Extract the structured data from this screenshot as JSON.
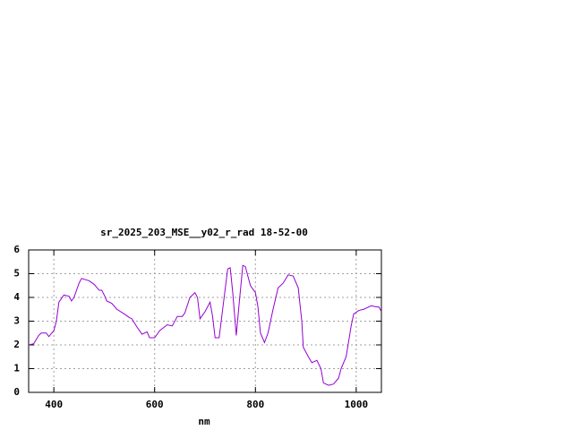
{
  "chart_data": {
    "type": "line",
    "title": "sr_2025_203_MSE__y02_r_rad 18-52-00",
    "x_label": "nm",
    "x": [
      350,
      360,
      370,
      375,
      385,
      390,
      400,
      405,
      410,
      420,
      430,
      435,
      440,
      450,
      455,
      470,
      480,
      490,
      495,
      500,
      505,
      515,
      525,
      540,
      550,
      555,
      565,
      575,
      585,
      590,
      600,
      610,
      625,
      635,
      645,
      655,
      660,
      670,
      680,
      685,
      690,
      700,
      710,
      715,
      720,
      728,
      735,
      745,
      750,
      755,
      762,
      768,
      775,
      780,
      790,
      800,
      805,
      810,
      818,
      825,
      835,
      845,
      855,
      865,
      875,
      885,
      892,
      895,
      905,
      912,
      922,
      930,
      935,
      945,
      955,
      965,
      970,
      980,
      990,
      995,
      1005,
      1015,
      1020,
      1030,
      1040,
      1045,
      1050
    ],
    "series": [
      {
        "name": "sr_2025_203_MSE__y02_r_rad",
        "color": "#9400d3",
        "values": [
          2.0,
          2.05,
          2.4,
          2.5,
          2.5,
          2.35,
          2.6,
          3.0,
          3.8,
          4.1,
          4.05,
          3.85,
          4.0,
          4.6,
          4.8,
          4.7,
          4.55,
          4.3,
          4.3,
          4.1,
          3.85,
          3.75,
          3.5,
          3.3,
          3.15,
          3.1,
          2.75,
          2.45,
          2.55,
          2.3,
          2.3,
          2.6,
          2.85,
          2.8,
          3.2,
          3.2,
          3.35,
          4.0,
          4.2,
          4.0,
          3.1,
          3.4,
          3.8,
          3.2,
          2.3,
          2.3,
          3.5,
          5.2,
          5.25,
          4.2,
          2.4,
          3.8,
          5.35,
          5.3,
          4.5,
          4.2,
          3.6,
          2.5,
          2.1,
          2.5,
          3.5,
          4.4,
          4.6,
          4.95,
          4.9,
          4.4,
          3.0,
          1.9,
          1.5,
          1.25,
          1.35,
          1.0,
          0.4,
          0.3,
          0.35,
          0.6,
          1.0,
          1.5,
          2.8,
          3.3,
          3.45,
          3.5,
          3.55,
          3.65,
          3.6,
          3.6,
          3.4
        ]
      }
    ],
    "xlim": [
      350,
      1050
    ],
    "ylim": [
      0,
      6
    ],
    "xticks": [
      400,
      600,
      800,
      1000
    ],
    "yticks": [
      0,
      1,
      2,
      3,
      4,
      5,
      6
    ],
    "grid": true
  }
}
